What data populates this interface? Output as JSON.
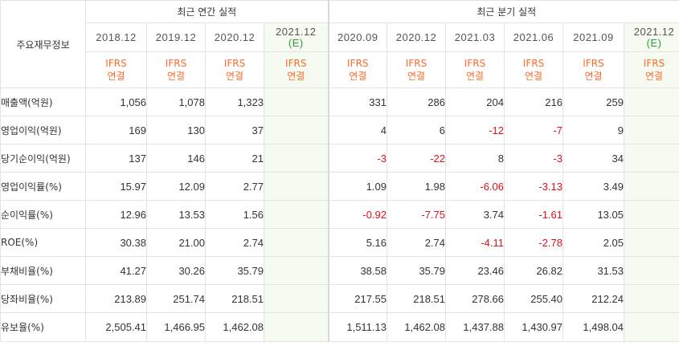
{
  "table": {
    "row_header": "주요재무정보",
    "group_annual": "최근 연간 실적",
    "group_quarterly": "최근 분기 실적",
    "periods": [
      {
        "label": "2018.12",
        "estimate": "",
        "basis1": "IFRS",
        "basis2": "연결"
      },
      {
        "label": "2019.12",
        "estimate": "",
        "basis1": "IFRS",
        "basis2": "연결"
      },
      {
        "label": "2020.12",
        "estimate": "",
        "basis1": "IFRS",
        "basis2": "연결"
      },
      {
        "label": "2021.12",
        "estimate": "(E)",
        "basis1": "IFRS",
        "basis2": "연결"
      },
      {
        "label": "2020.09",
        "estimate": "",
        "basis1": "IFRS",
        "basis2": "연결"
      },
      {
        "label": "2020.12",
        "estimate": "",
        "basis1": "IFRS",
        "basis2": "연결"
      },
      {
        "label": "2021.03",
        "estimate": "",
        "basis1": "IFRS",
        "basis2": "연결"
      },
      {
        "label": "2021.06",
        "estimate": "",
        "basis1": "IFRS",
        "basis2": "연결"
      },
      {
        "label": "2021.09",
        "estimate": "",
        "basis1": "IFRS",
        "basis2": "연결"
      },
      {
        "label": "2021.12",
        "estimate": "(E)",
        "basis1": "IFRS",
        "basis2": "연결"
      }
    ],
    "rows": [
      {
        "label": "매출액(억원)",
        "values": [
          "1,056",
          "1,078",
          "1,323",
          "",
          "331",
          "286",
          "204",
          "216",
          "259",
          ""
        ]
      },
      {
        "label": "영업이익(억원)",
        "values": [
          "169",
          "130",
          "37",
          "",
          "4",
          "6",
          "-12",
          "-7",
          "9",
          ""
        ]
      },
      {
        "label": "당기순이익(억원)",
        "values": [
          "137",
          "146",
          "21",
          "",
          "-3",
          "-22",
          "8",
          "-3",
          "34",
          ""
        ]
      },
      {
        "label": "영업이익률(%)",
        "values": [
          "15.97",
          "12.09",
          "2.77",
          "",
          "1.09",
          "1.98",
          "-6.06",
          "-3.13",
          "3.49",
          ""
        ]
      },
      {
        "label": "순이익률(%)",
        "values": [
          "12.96",
          "13.53",
          "1.56",
          "",
          "-0.92",
          "-7.75",
          "3.74",
          "-1.61",
          "13.05",
          ""
        ]
      },
      {
        "label": "ROE(%)",
        "values": [
          "30.38",
          "21.00",
          "2.74",
          "",
          "5.16",
          "2.74",
          "-4.11",
          "-2.78",
          "2.05",
          ""
        ]
      },
      {
        "label": "부채비율(%)",
        "values": [
          "41.27",
          "30.26",
          "35.79",
          "",
          "38.58",
          "35.79",
          "23.46",
          "26.82",
          "31.53",
          ""
        ]
      },
      {
        "label": "당좌비율(%)",
        "values": [
          "213.89",
          "251.74",
          "218.51",
          "",
          "217.55",
          "218.51",
          "278.66",
          "255.40",
          "212.24",
          ""
        ]
      },
      {
        "label": "유보율(%)",
        "values": [
          "2,505.41",
          "1,466.95",
          "1,462.08",
          "",
          "1,511.13",
          "1,462.08",
          "1,437.88",
          "1,430.97",
          "1,498.04",
          ""
        ]
      }
    ],
    "colors": {
      "basis_text": "#ff6a2b",
      "negative_text": "#e0101a",
      "estimate_bg": "#f5fbf1",
      "estimate_text": "#2e9a3b"
    }
  }
}
